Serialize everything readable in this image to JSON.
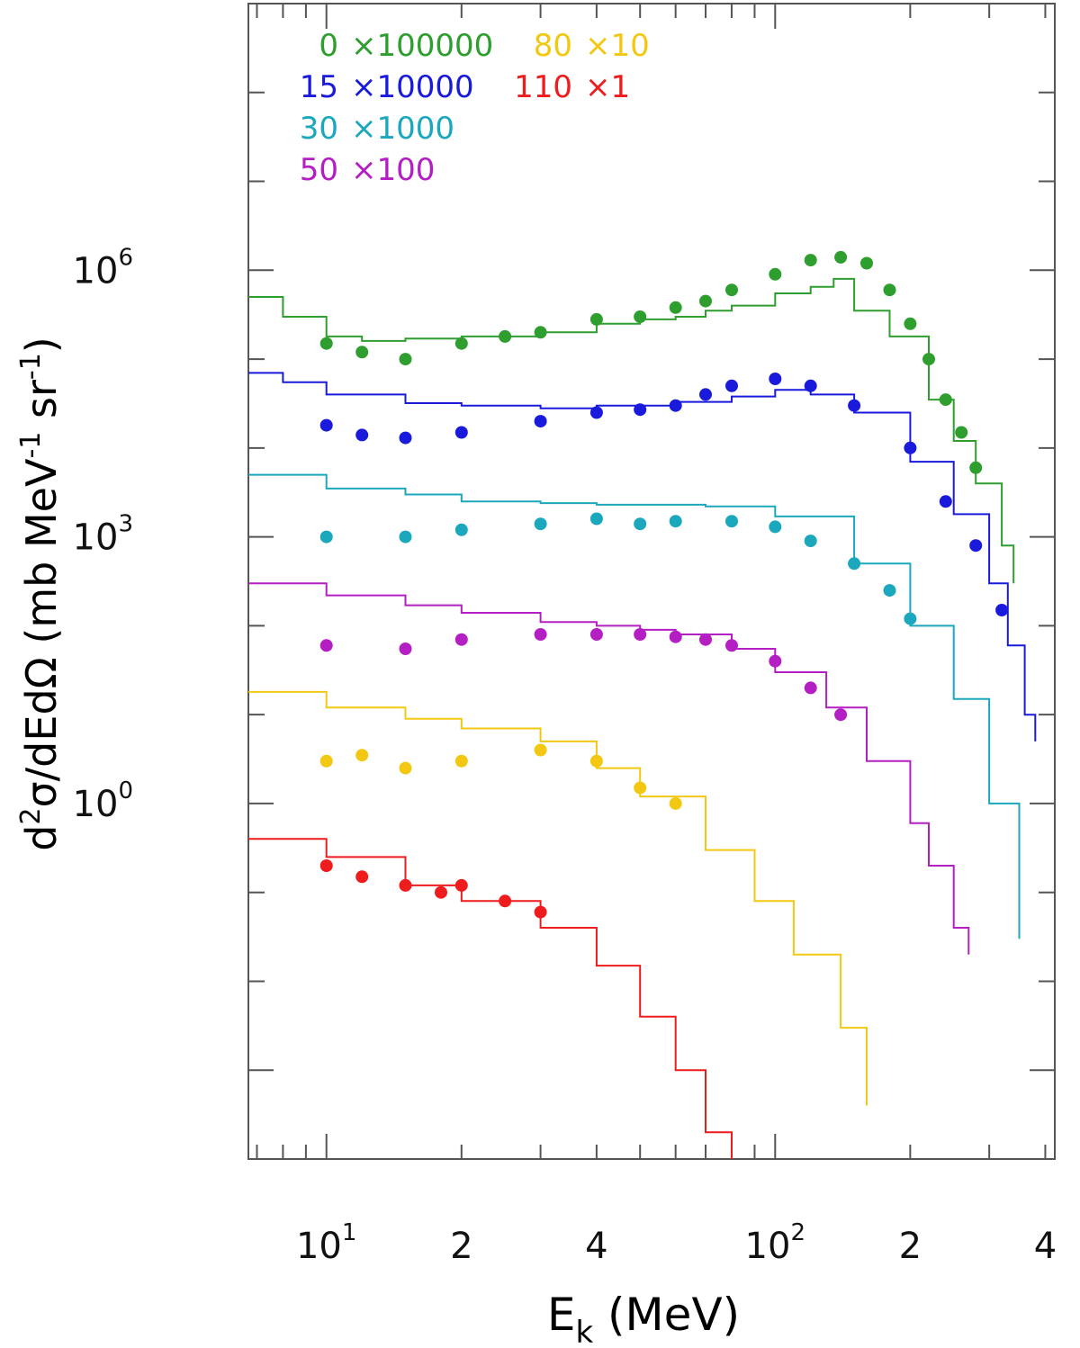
{
  "chart_data": {
    "type": "scatter",
    "xlabel": "E",
    "xlabel_sub": "k",
    "xlabel_unit": " (MeV)",
    "ylabel_parts": [
      "d",
      "2",
      "σ/dEdΩ (mb MeV",
      "-1",
      " sr",
      "-1",
      ")"
    ],
    "x_scale": "log",
    "y_scale": "log",
    "xlim": [
      6.7,
      420
    ],
    "ylim": [
      0.0001,
      1000000000
    ],
    "x_tick_labels": [
      {
        "value": 10,
        "base": "10",
        "exp": "1"
      },
      {
        "value": 20,
        "base": "2",
        "exp": ""
      },
      {
        "value": 40,
        "base": "4",
        "exp": ""
      },
      {
        "value": 100,
        "base": "10",
        "exp": "2"
      },
      {
        "value": 200,
        "base": "2",
        "exp": ""
      },
      {
        "value": 400,
        "base": "4",
        "exp": ""
      }
    ],
    "y_tick_labels": [
      {
        "value": 1000000,
        "base": "10",
        "exp": "6"
      },
      {
        "value": 1000,
        "base": "10",
        "exp": "3"
      },
      {
        "value": 1,
        "base": "10",
        "exp": "0"
      }
    ],
    "legend": [
      {
        "angle": "0",
        "factor": "×100000",
        "color": "#2e9e2e"
      },
      {
        "angle": "15",
        "factor": "×10000",
        "color": "#1a1adc"
      },
      {
        "angle": "30",
        "factor": "×1000",
        "color": "#1ba8bd"
      },
      {
        "angle": "50",
        "factor": "×100",
        "color": "#b41fc4"
      },
      {
        "angle": "80",
        "factor": "×10",
        "color": "#f2c813"
      },
      {
        "angle": "110",
        "factor": "×1",
        "color": "#ee1c1c"
      }
    ],
    "series": [
      {
        "color": "#2e9e2e",
        "data_points": [
          [
            10,
            150000
          ],
          [
            12,
            120000
          ],
          [
            15,
            100000
          ],
          [
            20,
            150000
          ],
          [
            25,
            180000
          ],
          [
            30,
            200000
          ],
          [
            40,
            280000
          ],
          [
            50,
            300000
          ],
          [
            60,
            380000
          ],
          [
            70,
            450000
          ],
          [
            80,
            600000
          ],
          [
            100,
            900000
          ],
          [
            120,
            1300000
          ],
          [
            140,
            1400000
          ],
          [
            160,
            1200000
          ],
          [
            180,
            600000
          ],
          [
            200,
            250000
          ],
          [
            220,
            100000
          ],
          [
            240,
            35000
          ],
          [
            260,
            15000
          ],
          [
            280,
            6000
          ]
        ],
        "model_curve": [
          [
            6.7,
            500000
          ],
          [
            8,
            300000
          ],
          [
            10,
            180000
          ],
          [
            12,
            160000
          ],
          [
            15,
            170000
          ],
          [
            20,
            180000
          ],
          [
            30,
            200000
          ],
          [
            40,
            250000
          ],
          [
            50,
            280000
          ],
          [
            60,
            300000
          ],
          [
            70,
            350000
          ],
          [
            80,
            400000
          ],
          [
            100,
            550000
          ],
          [
            120,
            650000
          ],
          [
            135,
            800000
          ],
          [
            150,
            350000
          ],
          [
            180,
            180000
          ],
          [
            220,
            35000
          ],
          [
            250,
            12000
          ],
          [
            280,
            4000
          ],
          [
            320,
            800
          ],
          [
            340,
            300
          ]
        ]
      },
      {
        "color": "#1a1adc",
        "data_points": [
          [
            10,
            18000
          ],
          [
            12,
            14000
          ],
          [
            15,
            13000
          ],
          [
            20,
            15000
          ],
          [
            30,
            20000
          ],
          [
            40,
            25000
          ],
          [
            50,
            27000
          ],
          [
            60,
            30000
          ],
          [
            70,
            40000
          ],
          [
            80,
            50000
          ],
          [
            100,
            60000
          ],
          [
            120,
            50000
          ],
          [
            150,
            30000
          ],
          [
            200,
            10000
          ],
          [
            240,
            2500
          ],
          [
            280,
            800
          ],
          [
            320,
            150
          ]
        ],
        "model_curve": [
          [
            6.7,
            70000
          ],
          [
            8,
            55000
          ],
          [
            10,
            40000
          ],
          [
            15,
            32000
          ],
          [
            20,
            30000
          ],
          [
            30,
            28000
          ],
          [
            40,
            30000
          ],
          [
            60,
            33000
          ],
          [
            80,
            38000
          ],
          [
            100,
            45000
          ],
          [
            120,
            40000
          ],
          [
            150,
            25000
          ],
          [
            200,
            7000
          ],
          [
            250,
            1800
          ],
          [
            300,
            300
          ],
          [
            330,
            60
          ],
          [
            360,
            10
          ],
          [
            380,
            5
          ]
        ]
      },
      {
        "color": "#1ba8bd",
        "data_points": [
          [
            10,
            1000
          ],
          [
            15,
            1000
          ],
          [
            20,
            1200
          ],
          [
            30,
            1400
          ],
          [
            40,
            1600
          ],
          [
            50,
            1400
          ],
          [
            60,
            1500
          ],
          [
            80,
            1500
          ],
          [
            100,
            1300
          ],
          [
            120,
            900
          ],
          [
            150,
            500
          ],
          [
            180,
            250
          ],
          [
            200,
            120
          ]
        ],
        "model_curve": [
          [
            6.7,
            5000
          ],
          [
            10,
            3500
          ],
          [
            15,
            3000
          ],
          [
            20,
            2500
          ],
          [
            30,
            2400
          ],
          [
            40,
            2300
          ],
          [
            50,
            2300
          ],
          [
            70,
            2200
          ],
          [
            100,
            1700
          ],
          [
            150,
            500
          ],
          [
            200,
            100
          ],
          [
            250,
            15
          ],
          [
            300,
            1
          ],
          [
            350,
            0.03
          ]
        ]
      },
      {
        "color": "#b41fc4",
        "data_points": [
          [
            10,
            60
          ],
          [
            15,
            55
          ],
          [
            20,
            70
          ],
          [
            30,
            80
          ],
          [
            40,
            80
          ],
          [
            50,
            80
          ],
          [
            60,
            75
          ],
          [
            70,
            70
          ],
          [
            80,
            60
          ],
          [
            100,
            40
          ],
          [
            120,
            20
          ],
          [
            140,
            10
          ]
        ],
        "model_curve": [
          [
            6.7,
            300
          ],
          [
            10,
            220
          ],
          [
            15,
            170
          ],
          [
            20,
            140
          ],
          [
            30,
            110
          ],
          [
            40,
            100
          ],
          [
            50,
            90
          ],
          [
            60,
            80
          ],
          [
            80,
            55
          ],
          [
            100,
            30
          ],
          [
            130,
            12
          ],
          [
            160,
            3
          ],
          [
            200,
            0.6
          ],
          [
            220,
            0.2
          ],
          [
            250,
            0.04
          ],
          [
            270,
            0.02
          ]
        ]
      },
      {
        "color": "#f2c813",
        "data_points": [
          [
            10,
            3
          ],
          [
            12,
            3.5
          ],
          [
            15,
            2.5
          ],
          [
            20,
            3
          ],
          [
            30,
            4
          ],
          [
            40,
            3
          ],
          [
            50,
            1.5
          ],
          [
            60,
            1
          ]
        ],
        "model_curve": [
          [
            6.7,
            18
          ],
          [
            10,
            12
          ],
          [
            15,
            9
          ],
          [
            20,
            7
          ],
          [
            30,
            5
          ],
          [
            40,
            2.5
          ],
          [
            50,
            1.2
          ],
          [
            70,
            0.3
          ],
          [
            90,
            0.08
          ],
          [
            110,
            0.02
          ],
          [
            140,
            0.003
          ],
          [
            160,
            0.0004
          ]
        ]
      },
      {
        "color": "#ee1c1c",
        "data_points": [
          [
            10,
            0.2
          ],
          [
            12,
            0.15
          ],
          [
            15,
            0.12
          ],
          [
            18,
            0.1
          ],
          [
            20,
            0.12
          ],
          [
            25,
            0.08
          ],
          [
            30,
            0.06
          ]
        ],
        "model_curve": [
          [
            6.7,
            0.4
          ],
          [
            10,
            0.25
          ],
          [
            15,
            0.12
          ],
          [
            20,
            0.08
          ],
          [
            30,
            0.04
          ],
          [
            40,
            0.015
          ],
          [
            50,
            0.004
          ],
          [
            60,
            0.001
          ],
          [
            70,
            0.0002
          ],
          [
            80,
            0.0001
          ]
        ]
      }
    ]
  }
}
